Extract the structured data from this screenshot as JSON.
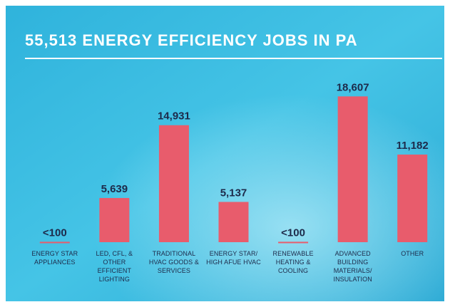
{
  "chart_data": {
    "type": "bar",
    "title": "55,513 ENERGY EFFICIENCY JOBS IN PA",
    "categories": [
      "ENERGY STAR APPLIANCES",
      "LED, CFL, & OTHER EFFICIENT LIGHTING",
      "TRADITIONAL HVAC GOODS & SERVICES",
      "ENERGY STAR/ HIGH AFUE HVAC",
      "RENEWABLE HEATING & COOLING",
      "ADVANCED BUILDING MATERIALS/ INSULATION",
      "OTHER"
    ],
    "values": [
      50,
      5639,
      14931,
      5137,
      50,
      18607,
      11182
    ],
    "value_labels": [
      "<100",
      "5,639",
      "14,931",
      "5,137",
      "<100",
      "18,607",
      "11,182"
    ],
    "color": "#e85c6c",
    "ylim": [
      0,
      20000
    ]
  }
}
